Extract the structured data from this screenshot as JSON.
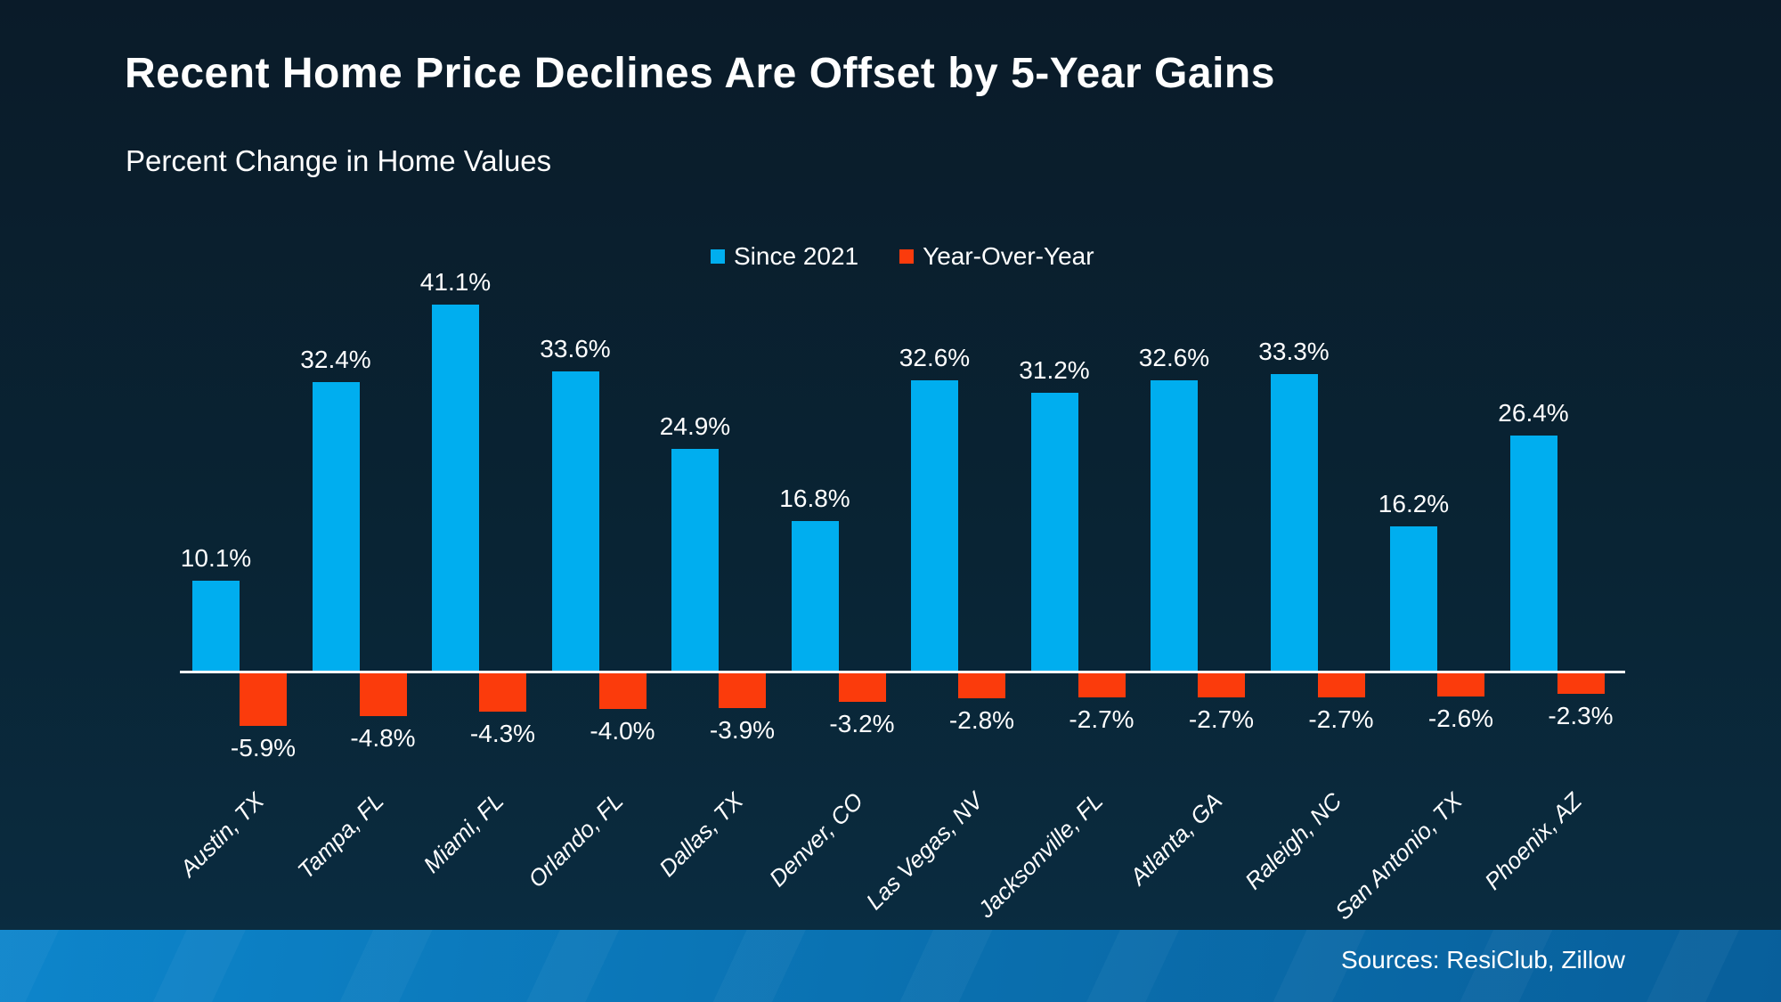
{
  "title": "Recent Home Price Declines Are Offset by 5-Year Gains",
  "subtitle": "Percent Change in Home Values",
  "footer": {
    "source_text": "Sources: ResiClub, Zillow"
  },
  "colors": {
    "background_top": "#0A1B29",
    "background_bottom": "#0A2D42",
    "title_text": "#FFFFFF",
    "axis_line": "#FFFFFF",
    "footer_bar_left": "#0D85CB",
    "footer_bar_right": "#085F9B"
  },
  "chart_data": {
    "type": "bar",
    "title": "Recent Home Price Declines Are Offset by 5-Year Gains",
    "subtitle": "Percent Change in Home Values",
    "categories": [
      "Austin, TX",
      "Tampa, FL",
      "Miami, FL",
      "Orlando, FL",
      "Dallas, TX",
      "Denver, CO",
      "Las Vegas, NV",
      "Jacksonville, FL",
      "Atlanta, GA",
      "Raleigh, NC",
      "San Antonio, TX",
      "Phoenix, AZ"
    ],
    "series": [
      {
        "name": "Since 2021",
        "color": "#00AEEF",
        "values": [
          10.1,
          32.4,
          41.1,
          33.6,
          24.9,
          16.8,
          32.6,
          31.2,
          32.6,
          33.3,
          16.2,
          26.4
        ]
      },
      {
        "name": "Year-Over-Year",
        "color": "#FB3B0C",
        "values": [
          -5.9,
          -4.8,
          -4.3,
          -4.0,
          -3.9,
          -3.2,
          -2.8,
          -2.7,
          -2.7,
          -2.7,
          -2.6,
          -2.3
        ]
      }
    ],
    "value_label_format": "0.0%",
    "xlabel": "",
    "ylabel": "",
    "ylim": [
      -8,
      45
    ],
    "grid": false,
    "legend_position": "top-center",
    "baseline": 0
  }
}
